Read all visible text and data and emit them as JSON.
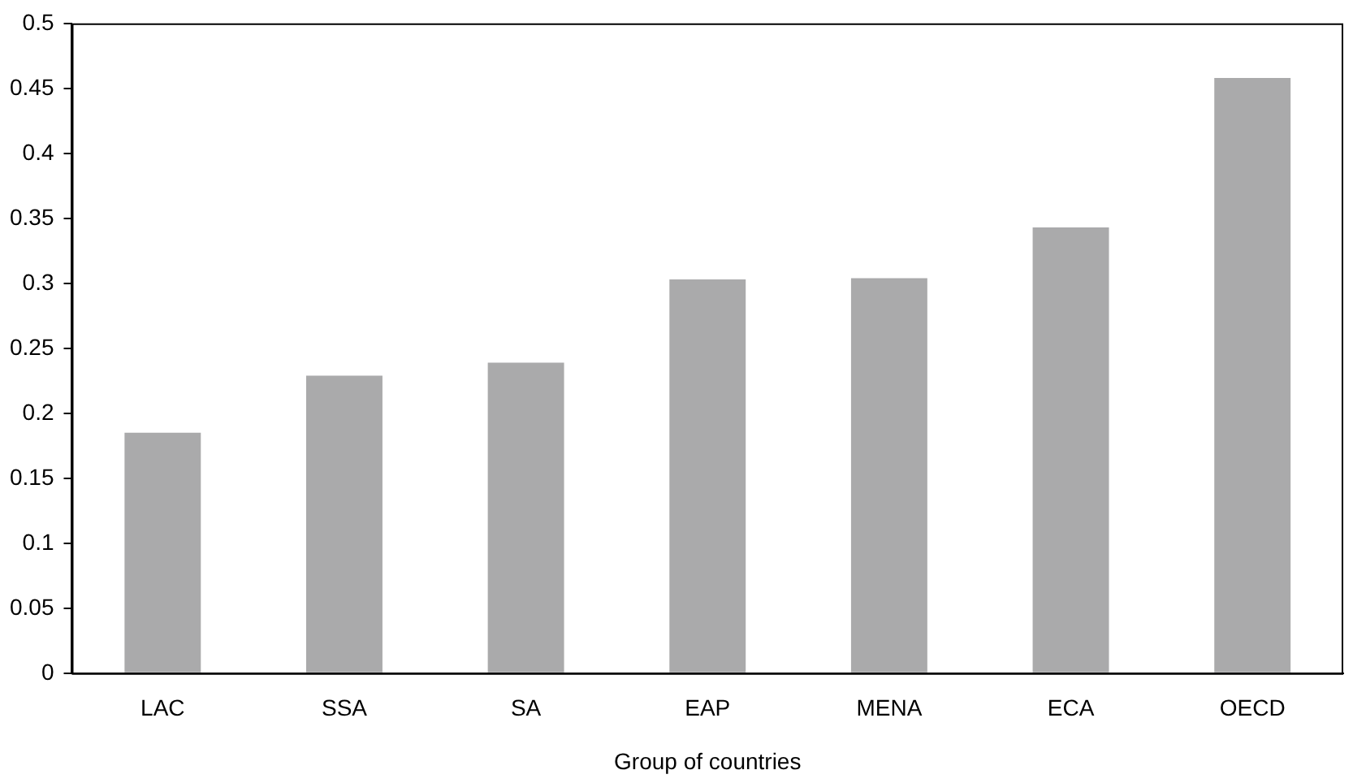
{
  "chart_data": {
    "type": "bar",
    "xlabel": "Group of countries",
    "categories": [
      "LAC",
      "SSA",
      "SA",
      "EAP",
      "MENA",
      "ECA",
      "OECD"
    ],
    "values": [
      0.185,
      0.229,
      0.239,
      0.303,
      0.304,
      0.343,
      0.458
    ],
    "color": "#aaaaab",
    "ylim": [
      0,
      0.5
    ],
    "yticks": [
      0,
      0.05,
      0.1,
      0.15,
      0.2,
      0.25,
      0.3,
      0.35,
      0.4,
      0.45,
      0.5
    ],
    "grid": false,
    "legend": false
  }
}
